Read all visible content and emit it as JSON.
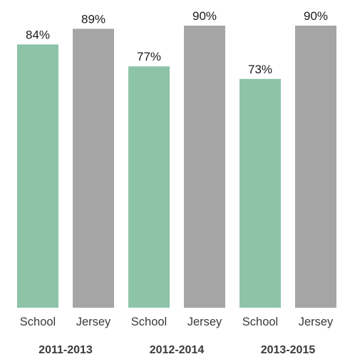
{
  "chart_data": {
    "type": "bar",
    "groups": [
      {
        "label": "2011-2013",
        "bars": [
          {
            "category": "School",
            "value": 84,
            "value_label": "84%"
          },
          {
            "category": "Jersey",
            "value": 89,
            "value_label": "89%"
          }
        ]
      },
      {
        "label": "2012-2014",
        "bars": [
          {
            "category": "School",
            "value": 77,
            "value_label": "77%"
          },
          {
            "category": "Jersey",
            "value": 90,
            "value_label": "90%"
          }
        ]
      },
      {
        "label": "2013-2015",
        "bars": [
          {
            "category": "School",
            "value": 73,
            "value_label": "73%"
          },
          {
            "category": "Jersey",
            "value": 90,
            "value_label": "90%"
          }
        ]
      }
    ],
    "ylim": [
      0,
      100
    ],
    "grid": false,
    "legend": "none",
    "colors": {
      "School": "#8dc3a7",
      "Jersey": "#a5a5a5"
    }
  }
}
